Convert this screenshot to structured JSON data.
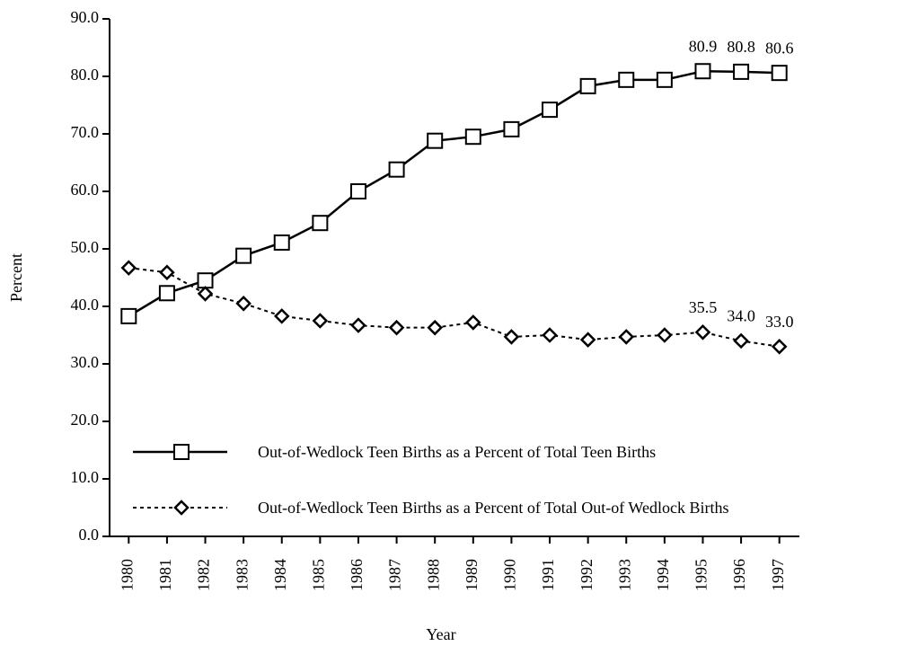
{
  "chart_data": {
    "type": "line",
    "x_label": "Year",
    "y_label": "Percent",
    "categories": [
      "1980",
      "1981",
      "1982",
      "1983",
      "1984",
      "1985",
      "1986",
      "1987",
      "1988",
      "1989",
      "1990",
      "1991",
      "1992",
      "1993",
      "1994",
      "1995",
      "1996",
      "1997"
    ],
    "series": [
      {
        "name": "Out-of-Wedlock Teen Births as a Percent of Total Teen Births",
        "color": "#000000",
        "line_style": "solid",
        "marker": "square",
        "values": [
          38.3,
          42.3,
          44.5,
          48.8,
          51.1,
          54.5,
          60.0,
          63.8,
          68.8,
          69.5,
          70.8,
          74.2,
          78.3,
          79.4,
          79.4,
          80.9,
          80.8,
          80.6
        ],
        "value_labels": [
          null,
          null,
          null,
          null,
          null,
          null,
          null,
          null,
          null,
          null,
          null,
          null,
          null,
          null,
          null,
          "80.9",
          "80.8",
          "80.6"
        ]
      },
      {
        "name": "Out-of-Wedlock Teen Births as a Percent of Total Out-of Wedlock Births",
        "color": "#000000",
        "line_style": "dashed",
        "marker": "diamond",
        "values": [
          46.7,
          45.9,
          42.2,
          40.5,
          38.3,
          37.5,
          36.7,
          36.3,
          36.3,
          37.2,
          34.7,
          35.0,
          34.2,
          34.7,
          35.0,
          35.5,
          34.0,
          33.0
        ],
        "value_labels": [
          null,
          null,
          null,
          null,
          null,
          null,
          null,
          null,
          null,
          null,
          null,
          null,
          null,
          null,
          null,
          "35.5",
          "34.0",
          "33.0"
        ]
      }
    ],
    "ylim": [
      0,
      90
    ],
    "yticks": [
      {
        "value": 0,
        "label": "0.0"
      },
      {
        "value": 10,
        "label": "10.0"
      },
      {
        "value": 20,
        "label": "20.0"
      },
      {
        "value": 30,
        "label": "30.0"
      },
      {
        "value": 40,
        "label": "40.0"
      },
      {
        "value": 50,
        "label": "50.0"
      },
      {
        "value": 60,
        "label": "60.0"
      },
      {
        "value": 70,
        "label": "70.0"
      },
      {
        "value": 80,
        "label": "80.0"
      },
      {
        "value": 90,
        "label": "90.0"
      }
    ],
    "grid": false
  }
}
